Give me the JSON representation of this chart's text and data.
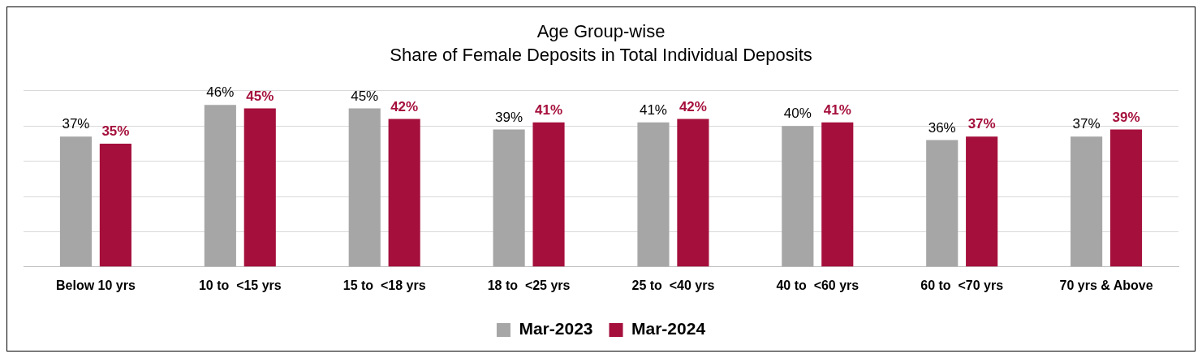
{
  "chart_data": {
    "type": "bar",
    "title": "Age Group-wise",
    "subtitle": "Share of Female Deposits in Total Individual Deposits",
    "categories": [
      "Below 10 yrs",
      "10 to  <15 yrs",
      "15 to  <18 yrs",
      "18 to  <25 yrs",
      "25 to  <40 yrs",
      "40 to  <60 yrs",
      "60 to  <70 yrs",
      "70 yrs & Above"
    ],
    "series": [
      {
        "name": "Mar-2023",
        "color": "#a6a6a6",
        "values": [
          37,
          46,
          45,
          39,
          41,
          40,
          36,
          37
        ],
        "value_labels": [
          "37%",
          "46%",
          "45%",
          "39%",
          "41%",
          "40%",
          "36%",
          "37%"
        ]
      },
      {
        "name": "Mar-2024",
        "color": "#a50f3c",
        "values": [
          35,
          45,
          42,
          41,
          42,
          41,
          37,
          39
        ],
        "value_labels": [
          "35%",
          "45%",
          "42%",
          "41%",
          "42%",
          "41%",
          "37%",
          "39%"
        ]
      }
    ],
    "ylim": [
      0,
      50
    ],
    "yticks": [
      {
        "value": 0,
        "label": null
      },
      {
        "value": 10,
        "label": null
      },
      {
        "value": 20,
        "label": null
      },
      {
        "value": 30,
        "label": null
      },
      {
        "value": 40,
        "label": null
      },
      {
        "value": 50,
        "label": null
      }
    ],
    "tick_labels": "x",
    "grid": "y",
    "legend": "bottom"
  }
}
